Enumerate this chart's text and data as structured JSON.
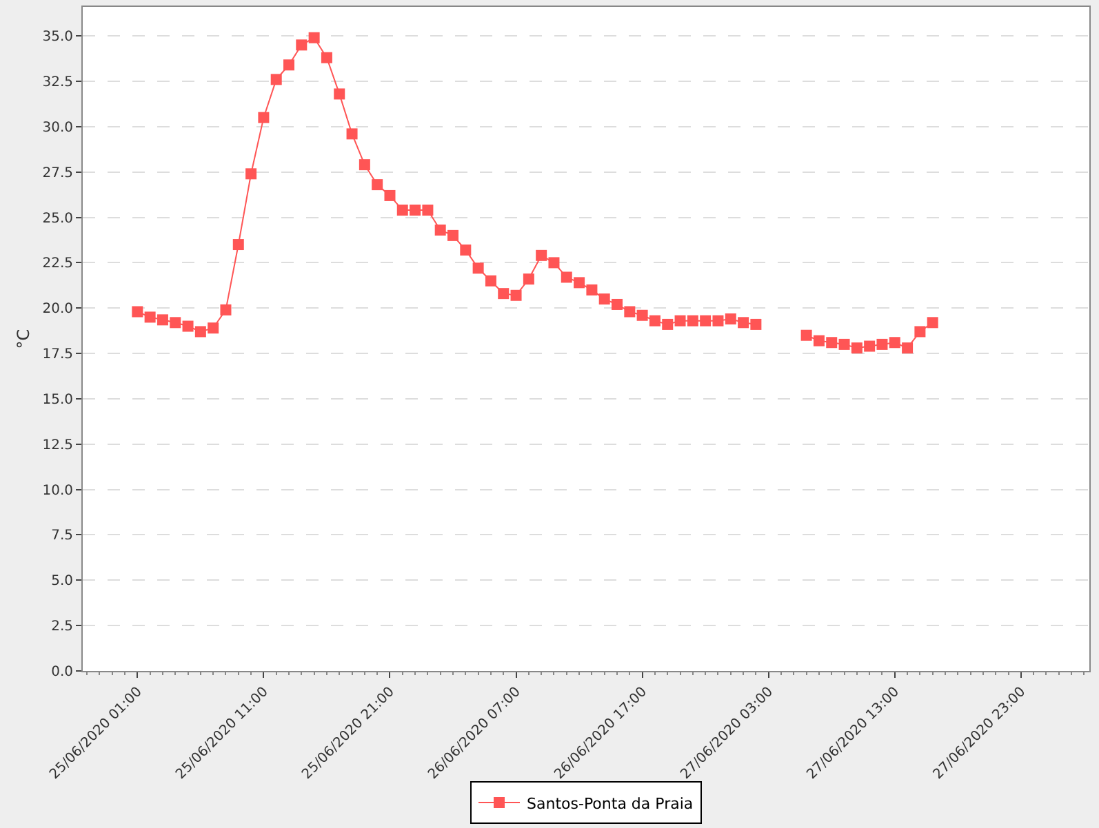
{
  "chart_data": {
    "type": "line",
    "ylabel": "°C",
    "x": [
      "2020-06-25T01:00",
      "2020-06-25T02:00",
      "2020-06-25T03:00",
      "2020-06-25T04:00",
      "2020-06-25T05:00",
      "2020-06-25T06:00",
      "2020-06-25T07:00",
      "2020-06-25T08:00",
      "2020-06-25T09:00",
      "2020-06-25T10:00",
      "2020-06-25T11:00",
      "2020-06-25T12:00",
      "2020-06-25T13:00",
      "2020-06-25T14:00",
      "2020-06-25T15:00",
      "2020-06-25T16:00",
      "2020-06-25T17:00",
      "2020-06-25T18:00",
      "2020-06-25T19:00",
      "2020-06-25T20:00",
      "2020-06-25T21:00",
      "2020-06-25T22:00",
      "2020-06-25T23:00",
      "2020-06-26T00:00",
      "2020-06-26T01:00",
      "2020-06-26T02:00",
      "2020-06-26T03:00",
      "2020-06-26T04:00",
      "2020-06-26T05:00",
      "2020-06-26T06:00",
      "2020-06-26T07:00",
      "2020-06-26T08:00",
      "2020-06-26T09:00",
      "2020-06-26T10:00",
      "2020-06-26T11:00",
      "2020-06-26T12:00",
      "2020-06-26T13:00",
      "2020-06-26T14:00",
      "2020-06-26T15:00",
      "2020-06-26T16:00",
      "2020-06-26T17:00",
      "2020-06-26T18:00",
      "2020-06-26T19:00",
      "2020-06-26T20:00",
      "2020-06-26T21:00",
      "2020-06-26T22:00",
      "2020-06-26T23:00",
      "2020-06-27T00:00",
      "2020-06-27T01:00",
      "2020-06-27T02:00",
      "2020-06-27T03:00",
      "2020-06-27T04:00",
      "2020-06-27T05:00",
      "2020-06-27T06:00",
      "2020-06-27T07:00",
      "2020-06-27T08:00",
      "2020-06-27T09:00",
      "2020-06-27T10:00",
      "2020-06-27T11:00",
      "2020-06-27T12:00",
      "2020-06-27T13:00",
      "2020-06-27T14:00",
      "2020-06-27T15:00",
      "2020-06-27T16:00"
    ],
    "series": [
      {
        "name": "Santos-Ponta da Praia",
        "color": "#ff5555",
        "values": [
          19.8,
          19.5,
          19.35,
          19.2,
          19.0,
          18.7,
          18.9,
          19.9,
          23.5,
          27.4,
          30.5,
          32.6,
          33.4,
          34.5,
          34.9,
          33.8,
          31.8,
          29.6,
          27.9,
          26.8,
          26.2,
          25.4,
          25.4,
          25.4,
          24.3,
          24.0,
          23.2,
          22.2,
          21.5,
          20.8,
          20.7,
          21.6,
          22.9,
          22.5,
          21.7,
          21.4,
          21.0,
          20.5,
          20.2,
          19.8,
          19.6,
          19.3,
          19.1,
          19.3,
          19.3,
          19.3,
          19.3,
          19.4,
          19.2,
          19.1,
          null,
          null,
          null,
          18.5,
          18.2,
          18.1,
          18.0,
          17.8,
          17.9,
          18.0,
          18.1,
          17.8,
          18.7,
          19.2
        ]
      }
    ],
    "xlim": [
      "2020-06-24T20:40",
      "2020-06-28T04:25"
    ],
    "xticks": [
      {
        "value": "2020-06-25T01:00",
        "label": "25/06/2020 01:00"
      },
      {
        "value": "2020-06-25T11:00",
        "label": "25/06/2020 11:00"
      },
      {
        "value": "2020-06-25T21:00",
        "label": "25/06/2020 21:00"
      },
      {
        "value": "2020-06-26T07:00",
        "label": "26/06/2020 07:00"
      },
      {
        "value": "2020-06-26T17:00",
        "label": "26/06/2020 17:00"
      },
      {
        "value": "2020-06-27T03:00",
        "label": "27/06/2020 03:00"
      },
      {
        "value": "2020-06-27T13:00",
        "label": "27/06/2020 13:00"
      },
      {
        "value": "2020-06-27T23:00",
        "label": "27/06/2020 23:00"
      }
    ],
    "ylim": [
      0,
      36.6
    ],
    "yticks": [
      {
        "value": 0,
        "label": "0.0"
      },
      {
        "value": 2.5,
        "label": "2.5"
      },
      {
        "value": 5,
        "label": "5.0"
      },
      {
        "value": 7.5,
        "label": "7.5"
      },
      {
        "value": 10,
        "label": "10.0"
      },
      {
        "value": 12.5,
        "label": "12.5"
      },
      {
        "value": 15,
        "label": "15.0"
      },
      {
        "value": 17.5,
        "label": "17.5"
      },
      {
        "value": 20,
        "label": "20.0"
      },
      {
        "value": 22.5,
        "label": "22.5"
      },
      {
        "value": 25,
        "label": "25.0"
      },
      {
        "value": 27.5,
        "label": "27.5"
      },
      {
        "value": 30,
        "label": "30.0"
      },
      {
        "value": 32.5,
        "label": "32.5"
      },
      {
        "value": 35,
        "label": "35.0"
      }
    ],
    "grid": "y",
    "legend": "bottom",
    "marker": "square",
    "line_style": "solid"
  }
}
